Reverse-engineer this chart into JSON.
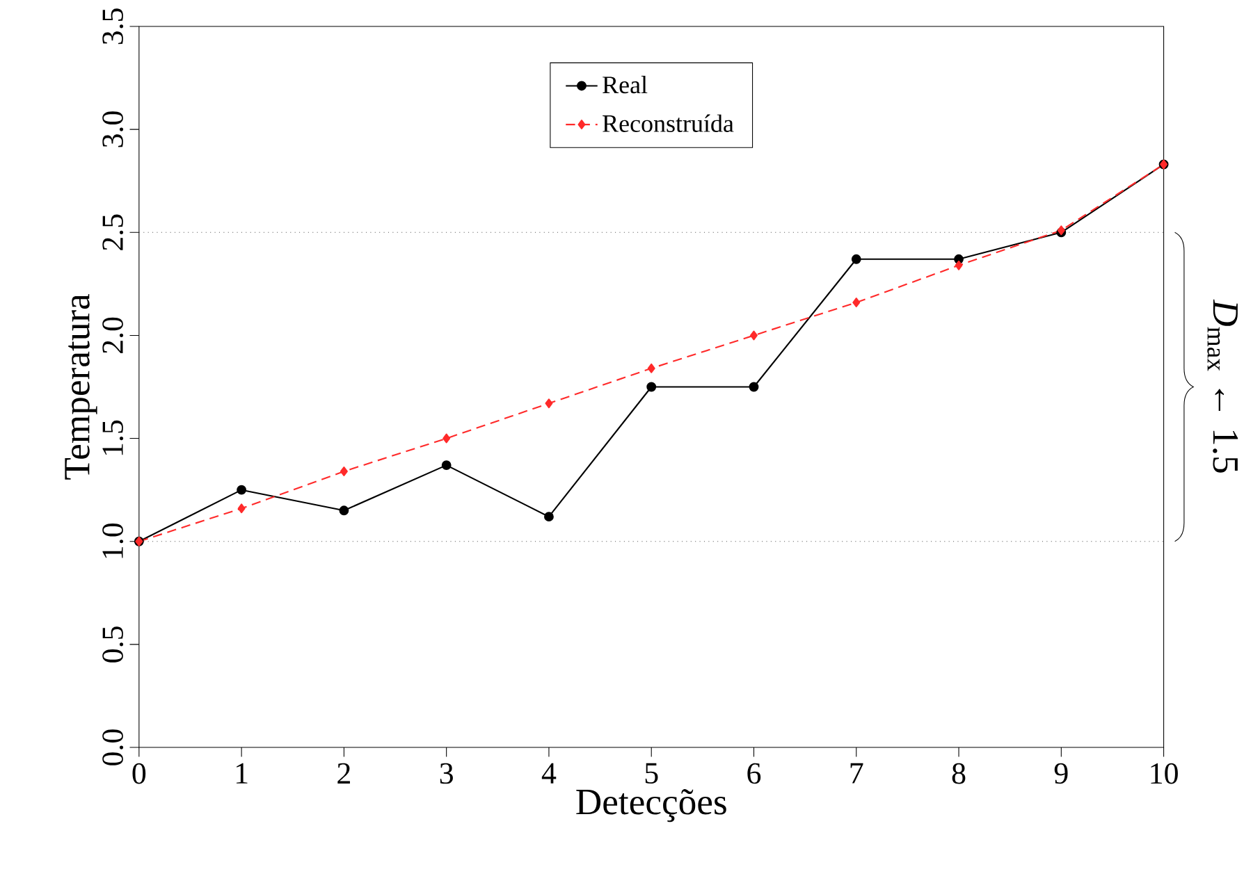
{
  "chart_data": {
    "type": "line",
    "xlabel": "Detecções",
    "ylabel": "Temperatura",
    "x": [
      0,
      1,
      2,
      3,
      4,
      5,
      6,
      7,
      8,
      9,
      10
    ],
    "series": [
      {
        "name": "Real",
        "color": "#000000",
        "marker": "circle",
        "line_style": "solid",
        "values": [
          1.0,
          1.25,
          1.15,
          1.37,
          1.12,
          1.75,
          1.75,
          2.37,
          2.37,
          2.5,
          2.83
        ]
      },
      {
        "name": "Reconstruída",
        "color": "#ff2a2a",
        "marker": "diamond",
        "line_style": "dashed",
        "values": [
          1.0,
          1.16,
          1.34,
          1.5,
          1.67,
          1.84,
          2.0,
          2.16,
          2.34,
          2.51,
          2.83
        ]
      }
    ],
    "xlim": [
      0,
      10
    ],
    "xticks": [
      0,
      1,
      2,
      3,
      4,
      5,
      6,
      7,
      8,
      9,
      10
    ],
    "ylim": [
      0,
      3.5
    ],
    "yticks": [
      {
        "value": 0,
        "label": "0.0"
      },
      {
        "value": 0.5,
        "label": "0.5"
      },
      {
        "value": 1,
        "label": "1.0"
      },
      {
        "value": 1.5,
        "label": "1.5"
      },
      {
        "value": 2,
        "label": "2.0"
      },
      {
        "value": 2.5,
        "label": "2.5"
      },
      {
        "value": 3,
        "label": "3.0"
      },
      {
        "value": 3.5,
        "label": "3.5"
      }
    ],
    "ref_lines": [
      {
        "axis": "y",
        "value": 1.0,
        "color": "#555555",
        "line_style": "dotted"
      },
      {
        "axis": "y",
        "value": 2.5,
        "color": "#555555",
        "line_style": "dotted"
      }
    ],
    "annotations": [
      "*D*$_{max}$ ← 1.5"
    ],
    "legend": "top",
    "grid": false
  }
}
